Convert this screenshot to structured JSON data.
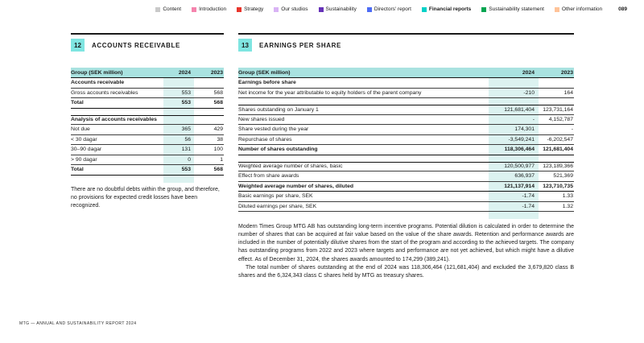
{
  "nav": {
    "items": [
      {
        "label": "Content",
        "color": "#c9c9c9"
      },
      {
        "label": "Introduction",
        "color": "#f584ad"
      },
      {
        "label": "Strategy",
        "color": "#e8352c"
      },
      {
        "label": "Our studios",
        "color": "#d9b3f5"
      },
      {
        "label": "Sustainability",
        "color": "#6632b8"
      },
      {
        "label": "Directors' report",
        "color": "#4d6cf5"
      },
      {
        "label": "Financial reports",
        "color": "#00d1c7"
      },
      {
        "label": "Sustainability statement",
        "color": "#00a551"
      },
      {
        "label": "Other information",
        "color": "#ffc399"
      }
    ],
    "page_number": "089"
  },
  "note12": {
    "number": "12",
    "title": "ACCOUNTS RECEIVABLE",
    "table": {
      "header": {
        "label": "Group (SEK million)",
        "y2024": "2024",
        "y2023": "2023"
      },
      "block1": [
        {
          "label": "Accounts receivable",
          "v2024": "",
          "v2023": ""
        },
        {
          "label": "Gross accounts receivables",
          "v2024": "553",
          "v2023": "568"
        },
        {
          "label": "Total",
          "v2024": "553",
          "v2023": "568"
        }
      ],
      "block2": [
        {
          "label": "Analysis of accounts receivables",
          "v2024": "",
          "v2023": ""
        },
        {
          "label": "Not due",
          "v2024": "365",
          "v2023": "429"
        },
        {
          "label": "< 30 dagar",
          "v2024": "56",
          "v2023": "38"
        },
        {
          "label": "30–90 dagar",
          "v2024": "131",
          "v2023": "100"
        },
        {
          "label": "> 90 dagar",
          "v2024": "0",
          "v2023": "1"
        },
        {
          "label": "Total",
          "v2024": "553",
          "v2023": "568"
        }
      ]
    },
    "paragraph": "There are no doubtful debts within the group, and therefore, no provisions for expected credit losses have been recognized."
  },
  "note13": {
    "number": "13",
    "title": "EARNINGS PER SHARE",
    "table": {
      "header": {
        "label": "Group (SEK million)",
        "y2024": "2024",
        "y2023": "2023"
      },
      "block1": [
        {
          "label": "Earnings before share",
          "v2024": "",
          "v2023": ""
        },
        {
          "label": "Net income for the year attributable to equity holders of the parent company",
          "v2024": "-210",
          "v2023": "164"
        }
      ],
      "block2": [
        {
          "label": "Shares outstanding on January 1",
          "v2024": "121,681,404",
          "v2023": "123,731,164"
        },
        {
          "label": "New shares issued",
          "v2024": "-",
          "v2023": "4,152,787"
        },
        {
          "label": "Share vested during the year",
          "v2024": "174,301",
          "v2023": "-"
        },
        {
          "label": "Repurchase of shares",
          "v2024": "-3,549,241",
          "v2023": "-6,202,547"
        },
        {
          "label": "Number of shares outstanding",
          "v2024": "118,306,464",
          "v2023": "121,681,404"
        }
      ],
      "block3": [
        {
          "label": "Weighted average number of shares, basic",
          "v2024": "120,500,977",
          "v2023": "123,189,366"
        },
        {
          "label": "Effect from share awards",
          "v2024": "636,937",
          "v2023": "521,369"
        },
        {
          "label": "Weighted average number of shares, diluted",
          "v2024": "121,137,914",
          "v2023": "123,710,735"
        },
        {
          "label": "Basic earnings per share, SEK",
          "v2024": "-1.74",
          "v2023": "1.33"
        },
        {
          "label": "Diluted earnings per share, SEK",
          "v2024": "-1.74",
          "v2023": "1.32"
        }
      ]
    },
    "paragraph1": "Modern Times Group MTG AB has outstanding long-term incentive programs. Potential dilution is calculated in order to determine the number of shares that can be acquired at fair value based on the value of the share awards. Retention and performance awards are included in the number of potentially dilutive shares from the start of the program and according to the achieved targets. The company has outstanding programs from 2022 and 2023 where targets and performance are not yet achieved, but which might have a dilutive effect. As of December 31, 2024, the shares awards amounted to 174,299 (389,241).",
    "paragraph2": "The total number of shares outstanding at the end of 2024 was 118,306,464 (121,681,404) and excluded the 3,679,820 class B shares and the 6,324,343 class C shares held by MTG as treasury shares."
  },
  "footer": "MTG — ANNUAL AND SUSTAINABILITY REPORT 2024"
}
